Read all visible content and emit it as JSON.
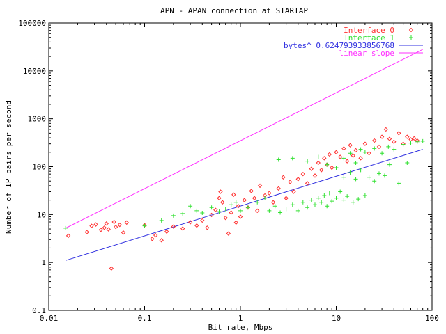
{
  "chart_data": {
    "type": "scatter",
    "title": "APN - APAN connection at STARTAP",
    "xlabel": "Bit rate, Mbps",
    "ylabel": "Number of IP pairs per second",
    "x_scale": "log",
    "y_scale": "log",
    "xlim": [
      0.01,
      100
    ],
    "ylim": [
      0.1,
      100000
    ],
    "x_ticks": [
      "0.01",
      "0.1",
      "1",
      "10",
      "100"
    ],
    "y_ticks": [
      "0.1",
      "1",
      "10",
      "100",
      "1000",
      "10000",
      "100000"
    ],
    "grid": false,
    "legend_position": "top-right",
    "series": [
      {
        "name": "Interface 0",
        "kind": "points",
        "marker": "diamond",
        "color": "#ff3030",
        "points": [
          [
            0.016,
            3.6
          ],
          [
            0.025,
            4.3
          ],
          [
            0.028,
            5.8
          ],
          [
            0.031,
            6.2
          ],
          [
            0.035,
            4.8
          ],
          [
            0.038,
            5.3
          ],
          [
            0.04,
            6.5
          ],
          [
            0.042,
            4.9
          ],
          [
            0.045,
            0.75
          ],
          [
            0.048,
            7.0
          ],
          [
            0.05,
            5.5
          ],
          [
            0.055,
            6.1
          ],
          [
            0.06,
            4.2
          ],
          [
            0.065,
            6.8
          ],
          [
            0.1,
            6.0
          ],
          [
            0.12,
            3.1
          ],
          [
            0.13,
            3.7
          ],
          [
            0.15,
            2.9
          ],
          [
            0.17,
            4.4
          ],
          [
            0.2,
            5.6
          ],
          [
            0.25,
            5.1
          ],
          [
            0.3,
            6.9
          ],
          [
            0.35,
            5.9
          ],
          [
            0.4,
            7.5
          ],
          [
            0.45,
            5.3
          ],
          [
            0.5,
            9.8
          ],
          [
            0.55,
            12.5
          ],
          [
            0.6,
            22.0
          ],
          [
            0.62,
            30.0
          ],
          [
            0.65,
            18.0
          ],
          [
            0.7,
            8.5
          ],
          [
            0.75,
            4.0
          ],
          [
            0.8,
            11.0
          ],
          [
            0.85,
            26.0
          ],
          [
            0.9,
            6.8
          ],
          [
            0.95,
            15.0
          ],
          [
            1.0,
            9.0
          ],
          [
            1.1,
            20.0
          ],
          [
            1.2,
            14.0
          ],
          [
            1.3,
            31.0
          ],
          [
            1.4,
            22.0
          ],
          [
            1.5,
            12.0
          ],
          [
            1.6,
            40.0
          ],
          [
            1.8,
            25.0
          ],
          [
            2.0,
            28.0
          ],
          [
            2.2,
            18.0
          ],
          [
            2.5,
            35.0
          ],
          [
            2.8,
            60.0
          ],
          [
            3.0,
            22.0
          ],
          [
            3.3,
            48.0
          ],
          [
            3.6,
            30.0
          ],
          [
            4.0,
            55.0
          ],
          [
            4.5,
            70.0
          ],
          [
            5.0,
            45.0
          ],
          [
            5.5,
            90.0
          ],
          [
            6.0,
            65.0
          ],
          [
            6.5,
            120.0
          ],
          [
            7.0,
            85.0
          ],
          [
            7.5,
            150.0
          ],
          [
            8.0,
            110.0
          ],
          [
            8.5,
            180.0
          ],
          [
            9.0,
            95.0
          ],
          [
            10.0,
            200.0
          ],
          [
            11.0,
            160.0
          ],
          [
            12.0,
            240.0
          ],
          [
            13.0,
            130.0
          ],
          [
            14.0,
            280.0
          ],
          [
            15.0,
            170.0
          ],
          [
            16.0,
            220.0
          ],
          [
            18.0,
            150.0
          ],
          [
            20.0,
            300.0
          ],
          [
            22.0,
            190.0
          ],
          [
            25.0,
            350.0
          ],
          [
            28.0,
            260.0
          ],
          [
            30.0,
            420.0
          ],
          [
            33.0,
            600.0
          ],
          [
            36.0,
            380.0
          ],
          [
            40.0,
            330.0
          ],
          [
            45.0,
            500.0
          ],
          [
            50.0,
            300.0
          ],
          [
            55.0,
            420.0
          ],
          [
            60.0,
            370.0
          ],
          [
            65.0,
            390.0
          ],
          [
            70.0,
            350.0
          ]
        ]
      },
      {
        "name": "Interface 1",
        "kind": "points",
        "marker": "plus",
        "color": "#30e030",
        "points": [
          [
            0.015,
            5.2
          ],
          [
            0.1,
            5.8
          ],
          [
            0.15,
            7.5
          ],
          [
            0.2,
            9.5
          ],
          [
            0.25,
            10.5
          ],
          [
            0.3,
            15.0
          ],
          [
            0.35,
            12.0
          ],
          [
            0.4,
            10.8
          ],
          [
            0.5,
            14.0
          ],
          [
            0.6,
            11.5
          ],
          [
            0.7,
            13.0
          ],
          [
            0.8,
            16.0
          ],
          [
            0.9,
            18.0
          ],
          [
            1.0,
            12.0
          ],
          [
            1.2,
            14.0
          ],
          [
            1.5,
            18.0
          ],
          [
            1.8,
            22.0
          ],
          [
            2.0,
            12.0
          ],
          [
            2.3,
            15.0
          ],
          [
            2.6,
            11.0
          ],
          [
            3.0,
            13.0
          ],
          [
            3.5,
            16.0
          ],
          [
            4.0,
            12.0
          ],
          [
            4.5,
            18.0
          ],
          [
            5.0,
            14.0
          ],
          [
            5.5,
            20.0
          ],
          [
            6.0,
            16.0
          ],
          [
            6.5,
            22.0
          ],
          [
            7.0,
            18.0
          ],
          [
            7.5,
            25.0
          ],
          [
            8.0,
            15.0
          ],
          [
            8.5,
            28.0
          ],
          [
            9.0,
            19.0
          ],
          [
            10.0,
            22.0
          ],
          [
            11.0,
            30.0
          ],
          [
            12.0,
            20.0
          ],
          [
            13.0,
            24.0
          ],
          [
            15.0,
            18.0
          ],
          [
            17.0,
            21.0
          ],
          [
            20.0,
            25.0
          ],
          [
            2.5,
            140.0
          ],
          [
            3.5,
            150.0
          ],
          [
            5.0,
            130.0
          ],
          [
            6.5,
            160.0
          ],
          [
            8.0,
            110.0
          ],
          [
            10.0,
            95.0
          ],
          [
            12.0,
            150.0
          ],
          [
            14.0,
            190.0
          ],
          [
            16.0,
            120.0
          ],
          [
            18.0,
            230.0
          ],
          [
            20.0,
            200.0
          ],
          [
            25.0,
            240.0
          ],
          [
            30.0,
            190.0
          ],
          [
            35.0,
            260.0
          ],
          [
            40.0,
            230.0
          ],
          [
            50.0,
            290.0
          ],
          [
            60.0,
            310.0
          ],
          [
            70.0,
            330.0
          ],
          [
            80.0,
            340.0
          ],
          [
            12.0,
            60.0
          ],
          [
            14.0,
            75.0
          ],
          [
            16.0,
            55.0
          ],
          [
            18.0,
            85.0
          ],
          [
            22.0,
            60.0
          ],
          [
            25.0,
            50.0
          ],
          [
            28.0,
            72.0
          ],
          [
            32.0,
            65.0
          ],
          [
            36.0,
            110.0
          ],
          [
            45.0,
            45.0
          ],
          [
            55.0,
            120.0
          ]
        ]
      },
      {
        "name": "bytes^ 0.624793933856768",
        "kind": "line",
        "color": "#3030e0",
        "x": [
          0.015,
          80
        ],
        "y": [
          1.1,
          230
        ]
      },
      {
        "name": "linear slope",
        "kind": "line",
        "color": "#ff30ff",
        "x": [
          0.015,
          80
        ],
        "y": [
          5.2,
          28000
        ]
      }
    ]
  }
}
